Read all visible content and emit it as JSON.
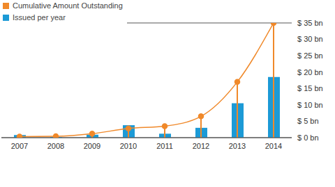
{
  "chart_data": {
    "type": "bar",
    "categories": [
      "2007",
      "2008",
      "2009",
      "2010",
      "2011",
      "2012",
      "2013",
      "2014"
    ],
    "series": [
      {
        "name": "Cumulative Amount Outstanding",
        "type": "line",
        "color": "#f0892a",
        "marker": "circle",
        "values": [
          0.3,
          0.4,
          1.2,
          2.8,
          3.5,
          6.5,
          17,
          35
        ]
      },
      {
        "name": "Issued per year",
        "type": "bar",
        "color": "#1c9ad6",
        "values": [
          0.8,
          0.2,
          0.9,
          3.8,
          1.2,
          3,
          10.5,
          18.5
        ]
      }
    ],
    "ylim": [
      0,
      35
    ],
    "yticks": [
      {
        "value": 0,
        "label": "$ 0 bn"
      },
      {
        "value": 5,
        "label": "$ 5 bn"
      },
      {
        "value": 10,
        "label": "$ 10 bn"
      },
      {
        "value": 15,
        "label": "$ 15 bn"
      },
      {
        "value": 20,
        "label": "$ 20 bn"
      },
      {
        "value": 25,
        "label": "$ 25 bn"
      },
      {
        "value": 30,
        "label": "$ 30 bn"
      },
      {
        "value": 35,
        "label": "$ 35 bn"
      }
    ],
    "grid": true,
    "legend": "upper left"
  }
}
